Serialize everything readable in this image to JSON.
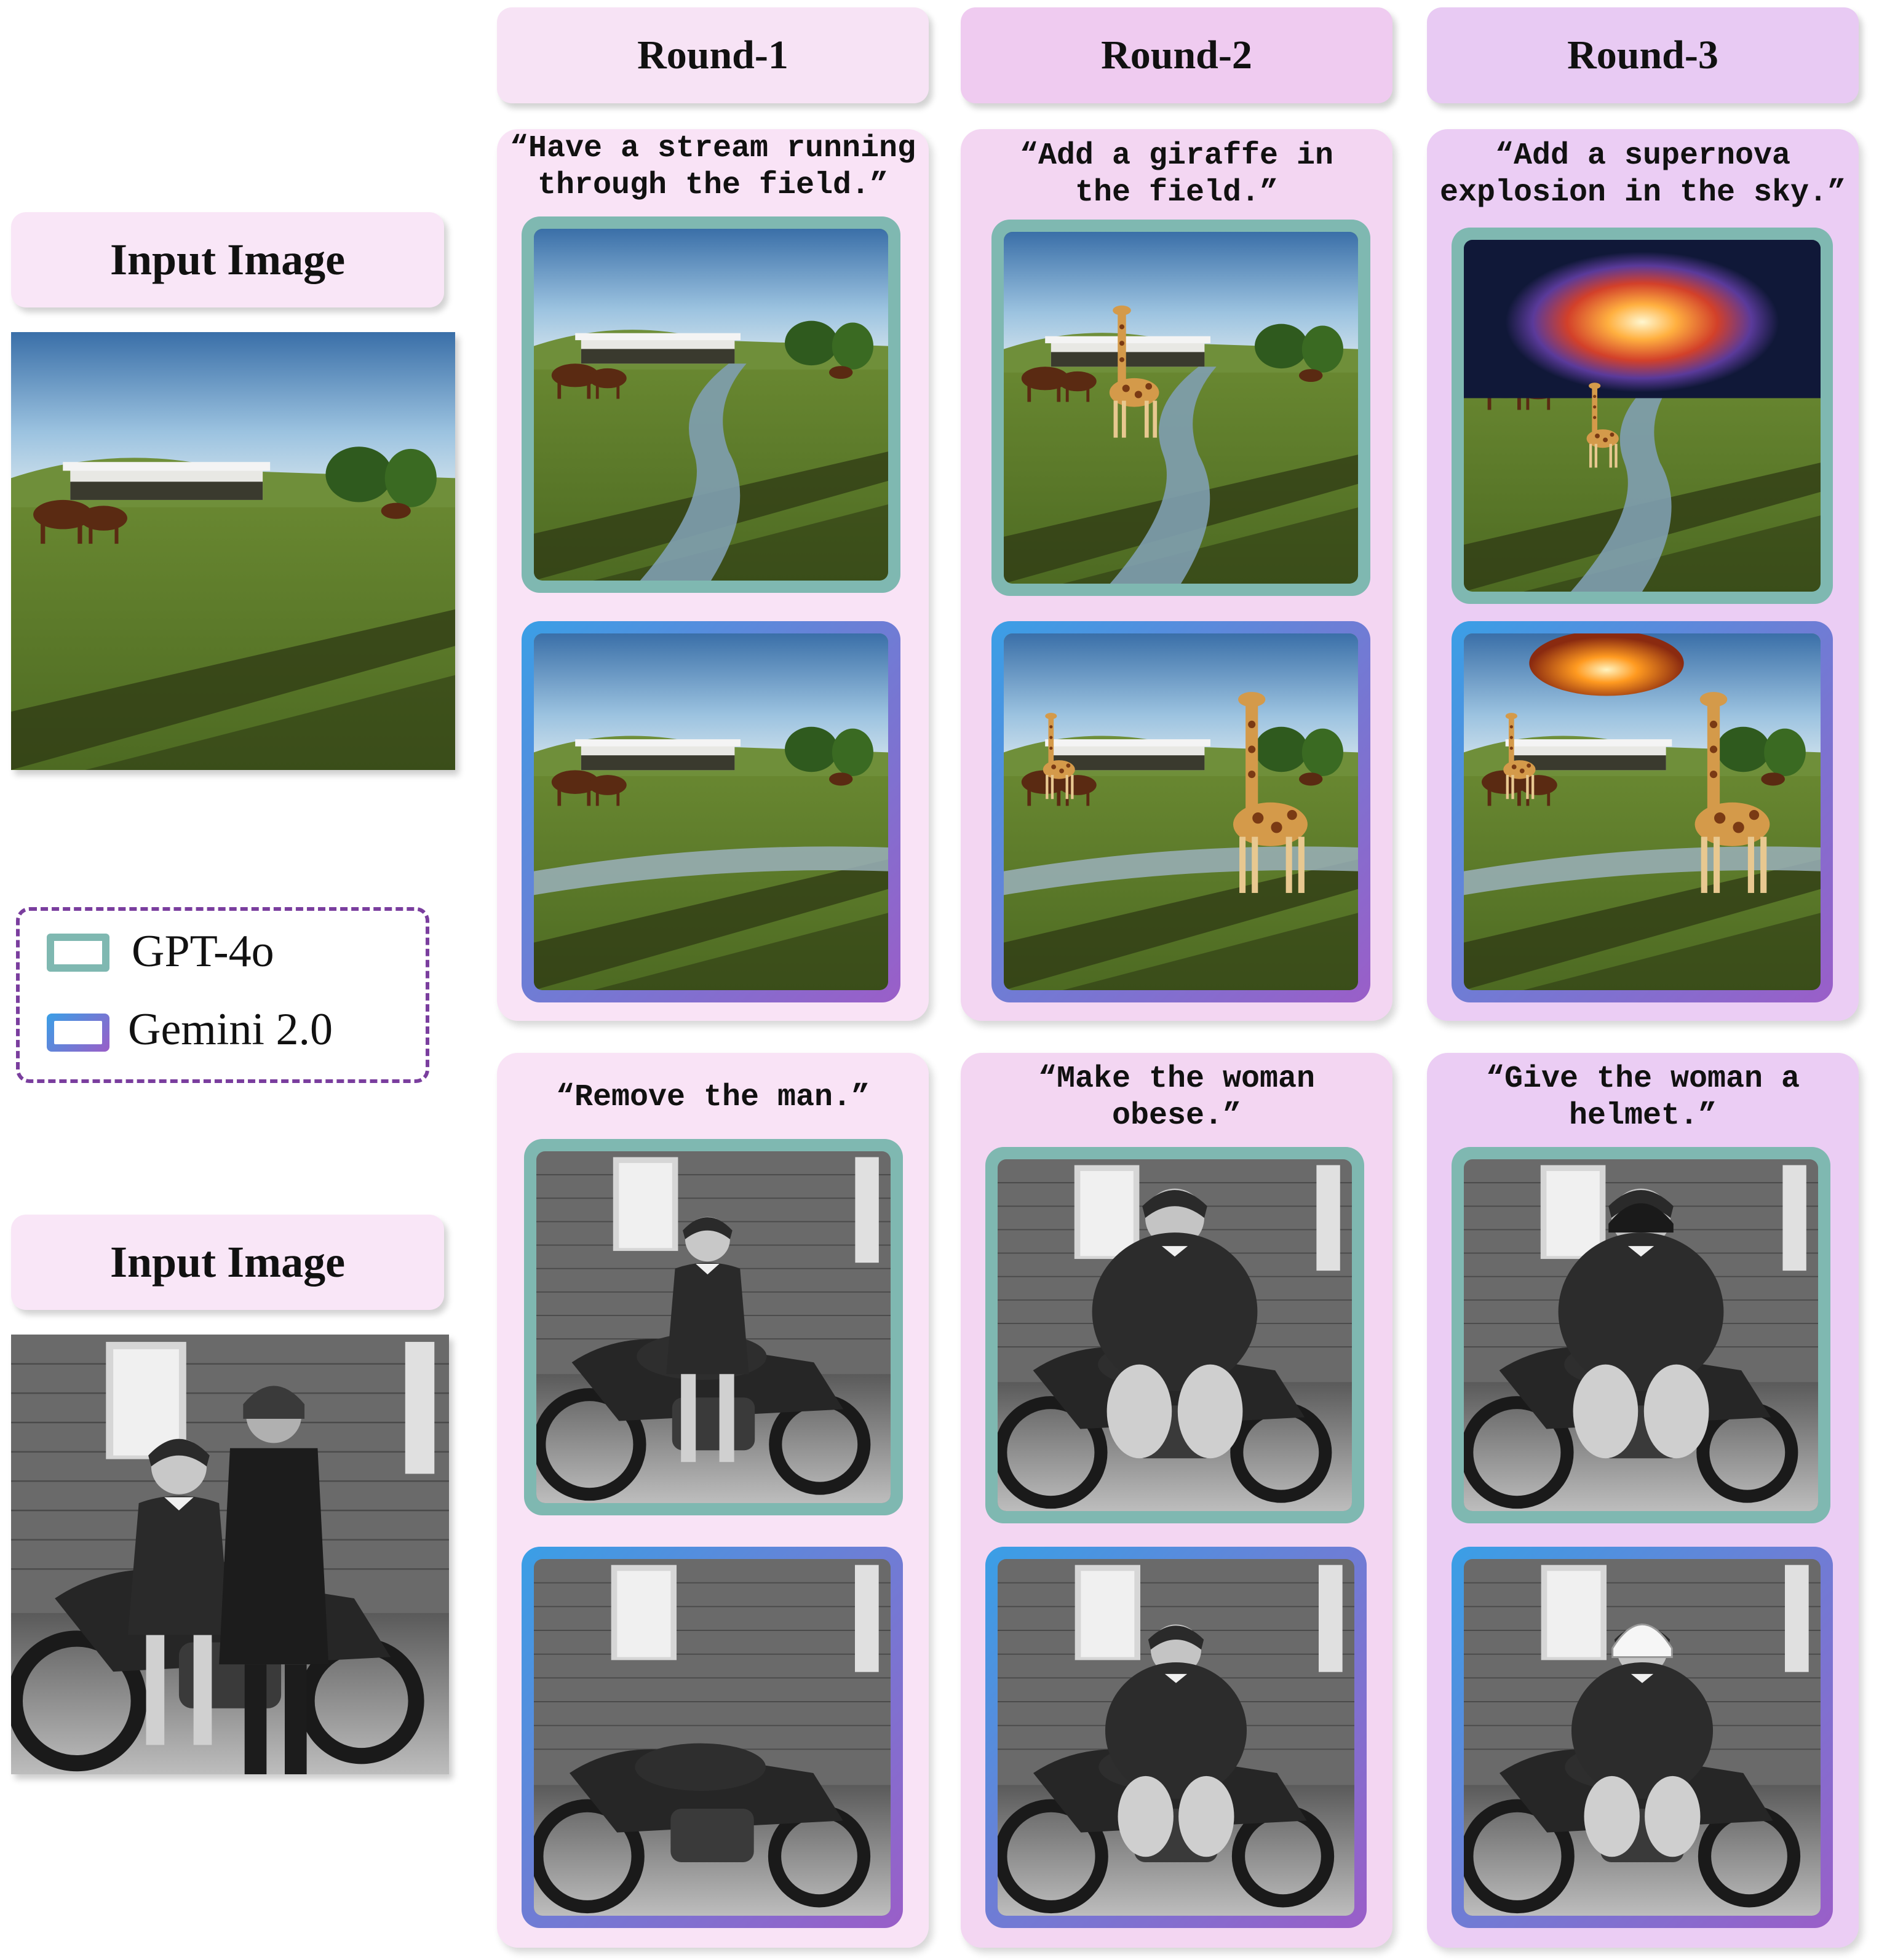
{
  "rounds": [
    "Round-1",
    "Round-2",
    "Round-3"
  ],
  "input_label": "Input Image",
  "legend": {
    "gpt": "GPT-4o",
    "gemini": "Gemini 2.0",
    "gpt_color": "#7fb8b1",
    "gemini_colors": [
      "#3a9fe6",
      "#9a5ec8"
    ]
  },
  "rows": [
    {
      "prompts": [
        "“Have a stream running\nthrough the field.”",
        "“Add a giraffe in\nthe field.”",
        "“Add a supernova\nexplosion in the sky.”"
      ]
    },
    {
      "prompts": [
        "“Remove the man.”",
        "“Make the woman\nobese.”",
        "“Give the woman a\nhelmet.”"
      ]
    }
  ]
}
